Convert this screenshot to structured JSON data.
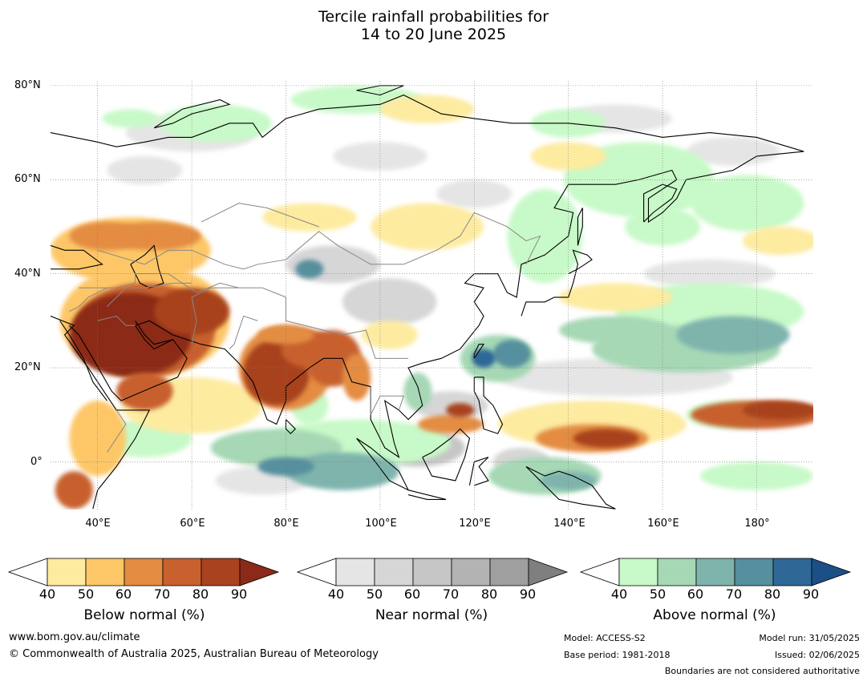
{
  "title": {
    "line1": "Tercile rainfall probabilities for",
    "line2": "14 to 20 June 2025"
  },
  "axes": {
    "lat_labels": [
      "80°N",
      "60°N",
      "40°N",
      "20°N",
      "0°"
    ],
    "lon_labels": [
      "40°E",
      "60°E",
      "80°E",
      "100°E",
      "120°E",
      "140°E",
      "160°E",
      "180°"
    ]
  },
  "legends": [
    {
      "title": "Below normal (%)",
      "ticks": [
        "40",
        "50",
        "60",
        "70",
        "80",
        "90"
      ],
      "colors": [
        "#fdeba0",
        "#fdc767",
        "#e38c42",
        "#c8612e",
        "#a8421f",
        "#8b2a18"
      ]
    },
    {
      "title": "Near normal (%)",
      "ticks": [
        "40",
        "50",
        "60",
        "70",
        "80",
        "90"
      ],
      "colors": [
        "#e5e5e5",
        "#d6d6d6",
        "#c6c6c6",
        "#b3b3b3",
        "#9f9f9f",
        "#7f7f7f"
      ]
    },
    {
      "title": "Above normal (%)",
      "ticks": [
        "40",
        "50",
        "60",
        "70",
        "80",
        "90"
      ],
      "colors": [
        "#c8f9c8",
        "#a6d8b5",
        "#7fb4ad",
        "#568f9e",
        "#2f6796",
        "#1c4f86"
      ]
    }
  ],
  "footer": {
    "website": "www.bom.gov.au/climate",
    "copyright": "© Commonwealth of Australia 2025, Australian Bureau of Meteorology",
    "model": "Model: ACCESS-S2",
    "base_period": "Base period: 1981-2018",
    "model_run": "Model run: 31/05/2025",
    "issued": "Issued: 02/06/2025",
    "disclaimer": "Boundaries are not considered authoritative"
  }
}
